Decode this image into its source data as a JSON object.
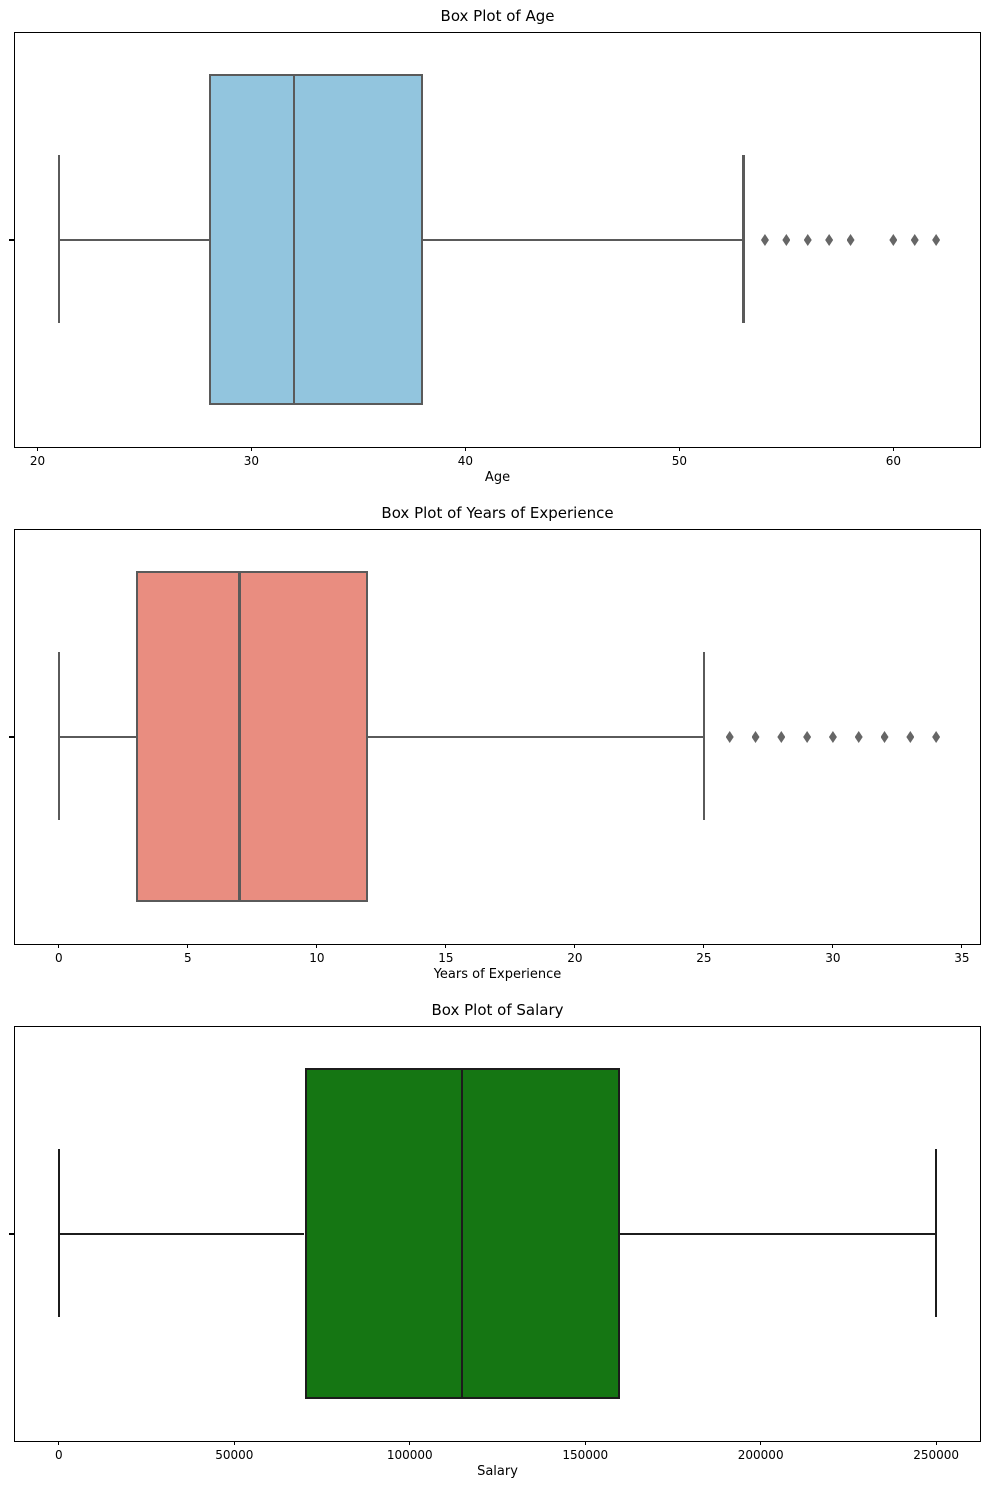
{
  "chart_data": [
    {
      "type": "box",
      "orientation": "horizontal",
      "title": "Box Plot of Age",
      "xlabel": "Age",
      "xlim": [
        18.95,
        64.05
      ],
      "xticks": [
        20,
        30,
        40,
        50,
        60
      ],
      "grid": false,
      "stats": {
        "whisker_low": 21,
        "q1": 28,
        "median": 32,
        "q3": 38,
        "whisker_high": 53
      },
      "outliers": [
        54,
        55,
        56,
        57,
        58,
        60,
        61,
        62
      ],
      "box_color": "#92C5DE",
      "line_color": "#5A5A5A",
      "outlier_color": "#666666"
    },
    {
      "type": "box",
      "orientation": "horizontal",
      "title": "Box Plot of Years of Experience",
      "xlabel": "Years of Experience",
      "xlim": [
        -1.7,
        35.7
      ],
      "xticks": [
        0,
        5,
        10,
        15,
        20,
        25,
        30,
        35
      ],
      "grid": false,
      "stats": {
        "whisker_low": 0,
        "q1": 3,
        "median": 7,
        "q3": 12,
        "whisker_high": 25
      },
      "outliers": [
        26,
        27,
        28,
        29,
        30,
        31,
        32,
        33,
        34
      ],
      "box_color": "#E98D80",
      "line_color": "#5A5A5A",
      "outlier_color": "#666666"
    },
    {
      "type": "box",
      "orientation": "horizontal",
      "title": "Box Plot of Salary",
      "xlabel": "Salary",
      "xlim": [
        -12500,
        262500
      ],
      "xticks": [
        0,
        50000,
        100000,
        150000,
        200000,
        250000
      ],
      "grid": false,
      "stats": {
        "whisker_low": 0,
        "q1": 70000,
        "median": 115000,
        "q3": 160000,
        "whisker_high": 250000
      },
      "outliers": [],
      "box_color": "#157613",
      "line_color": "#1C1C1C",
      "outlier_color": "#666666"
    }
  ]
}
